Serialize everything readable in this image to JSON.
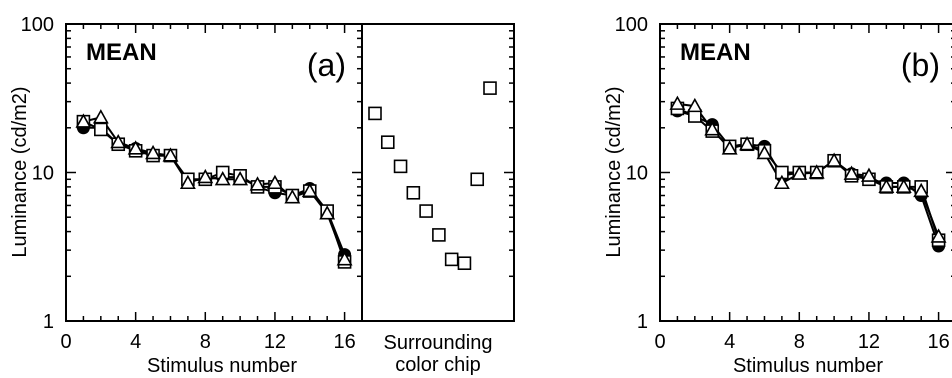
{
  "chart_data": [
    {
      "type": "line",
      "yscale": "log",
      "ylim": [
        1,
        100
      ],
      "xlim": [
        0,
        17
      ],
      "title": "MEAN",
      "panel_label": "(a)",
      "xlabel": "Stimulus number",
      "ylabel": "Luminance (cd/m2)",
      "x_tick_labels": [
        "0",
        "4",
        "8",
        "12",
        "16"
      ],
      "y_tick_labels": [
        "1",
        "10",
        "100"
      ],
      "x_ticks": [
        0,
        4,
        8,
        12,
        16
      ],
      "y_ticks": [
        1,
        10,
        100
      ],
      "series": [
        {
          "marker": "circle",
          "x": [
            1,
            2,
            3,
            4,
            5,
            6,
            7,
            8,
            9,
            10,
            11,
            12,
            13,
            14,
            15,
            16
          ],
          "y": [
            20,
            20,
            15.5,
            14.5,
            13,
            13,
            8.8,
            9,
            9.3,
            9.3,
            8,
            7.3,
            7,
            7.8,
            5.5,
            2.8
          ]
        },
        {
          "marker": "square",
          "x": [
            1,
            2,
            3,
            4,
            5,
            6,
            7,
            8,
            9,
            10,
            11,
            12,
            13,
            14,
            15,
            16
          ],
          "y": [
            22,
            19.5,
            15.5,
            14,
            13,
            13,
            9,
            9,
            10,
            9.5,
            8,
            8,
            7,
            7.5,
            5.5,
            2.5
          ]
        },
        {
          "marker": "triangle",
          "x": [
            1,
            2,
            3,
            4,
            5,
            6,
            7,
            8,
            9,
            10,
            11,
            12,
            13,
            14,
            15,
            16
          ],
          "y": [
            22,
            23.5,
            16,
            14.5,
            13.5,
            13,
            8.5,
            9.3,
            9,
            9,
            8.3,
            8.5,
            6.8,
            7.5,
            5.3,
            2.6
          ]
        }
      ],
      "inset": {
        "xlabel_line1": "Surrounding",
        "xlabel_line2": "color chip",
        "marker": "square",
        "y": [
          25,
          16,
          11,
          7.3,
          5.5,
          3.8,
          2.6,
          2.45,
          9,
          37
        ]
      }
    },
    {
      "type": "line",
      "yscale": "log",
      "ylim": [
        1,
        100
      ],
      "xlim": [
        0,
        17
      ],
      "title": "MEAN",
      "panel_label": "(b)",
      "xlabel": "Stimulus number",
      "ylabel": "Luminance (cd/m2)",
      "x_tick_labels": [
        "0",
        "4",
        "8",
        "12",
        "16"
      ],
      "y_tick_labels": [
        "1",
        "10",
        "100"
      ],
      "x_ticks": [
        0,
        4,
        8,
        12,
        16
      ],
      "y_ticks": [
        1,
        10,
        100
      ],
      "series": [
        {
          "marker": "circle",
          "x": [
            1,
            2,
            3,
            4,
            5,
            6,
            7,
            8,
            9,
            10,
            11,
            12,
            13,
            14,
            15,
            16
          ],
          "y": [
            26,
            24,
            21,
            15,
            15.5,
            15,
            9.5,
            10,
            10,
            12,
            9.8,
            9,
            8.5,
            8.5,
            7,
            3.2
          ]
        },
        {
          "marker": "square",
          "x": [
            1,
            2,
            3,
            4,
            5,
            6,
            7,
            8,
            9,
            10,
            11,
            12,
            13,
            14,
            15,
            16
          ],
          "y": [
            27,
            24,
            19,
            15,
            15.5,
            14,
            10,
            10,
            10,
            12,
            9.5,
            9,
            8,
            8,
            8,
            3.5
          ]
        },
        {
          "marker": "triangle",
          "x": [
            1,
            2,
            3,
            4,
            5,
            6,
            7,
            8,
            9,
            10,
            11,
            12,
            13,
            14,
            15,
            16
          ],
          "y": [
            29,
            28,
            19.5,
            14.5,
            15.5,
            13.5,
            8.5,
            9.8,
            10,
            12,
            9.8,
            9.5,
            8,
            8,
            7.5,
            3.7
          ]
        }
      ]
    }
  ]
}
